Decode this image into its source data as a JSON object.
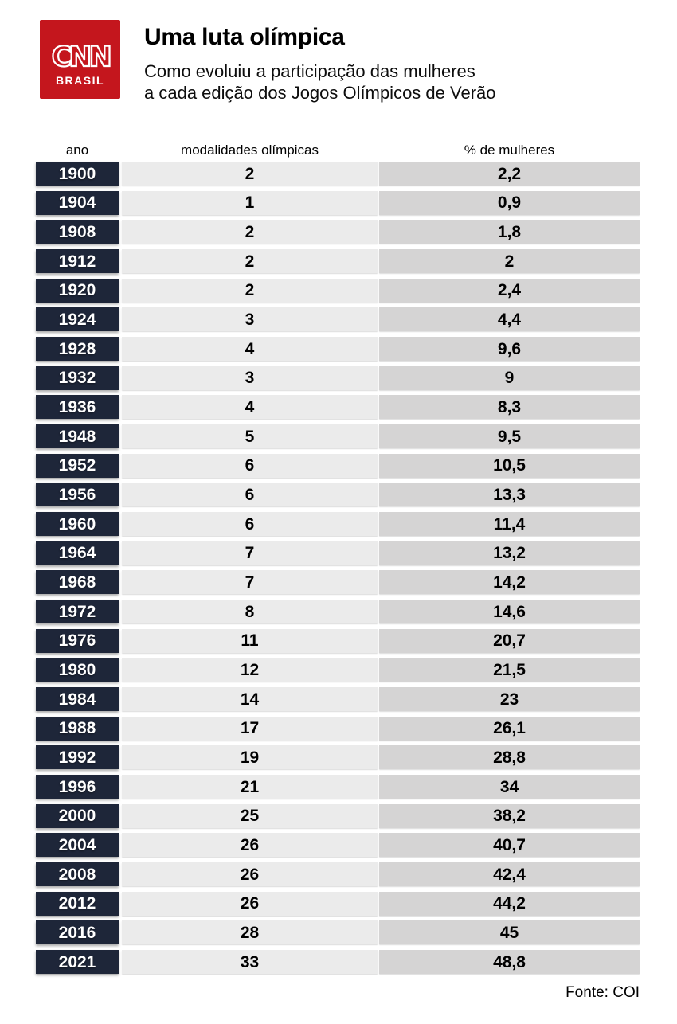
{
  "logo": {
    "brand": "CNN",
    "region": "BRASIL"
  },
  "header": {
    "title": "Uma luta olímpica",
    "subtitle_line1": "Como evoluiu a participação das mulheres",
    "subtitle_line2": "a cada edição dos Jogos Olímpicos de Verão"
  },
  "colors": {
    "cnn_red": "#c4161d",
    "navy": "#1e2639",
    "col_light": "#ebebeb",
    "col_mid": "#d5d4d4"
  },
  "table": {
    "columns": [
      "ano",
      "modalidades olímpicas",
      "% de mulheres"
    ],
    "rows": [
      {
        "year": "1900",
        "modalities": "2",
        "women_pct": "2,2"
      },
      {
        "year": "1904",
        "modalities": "1",
        "women_pct": "0,9"
      },
      {
        "year": "1908",
        "modalities": "2",
        "women_pct": "1,8"
      },
      {
        "year": "1912",
        "modalities": "2",
        "women_pct": "2"
      },
      {
        "year": "1920",
        "modalities": "2",
        "women_pct": "2,4"
      },
      {
        "year": "1924",
        "modalities": "3",
        "women_pct": "4,4"
      },
      {
        "year": "1928",
        "modalities": "4",
        "women_pct": "9,6"
      },
      {
        "year": "1932",
        "modalities": "3",
        "women_pct": "9"
      },
      {
        "year": "1936",
        "modalities": "4",
        "women_pct": "8,3"
      },
      {
        "year": "1948",
        "modalities": "5",
        "women_pct": "9,5"
      },
      {
        "year": "1952",
        "modalities": "6",
        "women_pct": "10,5"
      },
      {
        "year": "1956",
        "modalities": "6",
        "women_pct": "13,3"
      },
      {
        "year": "1960",
        "modalities": "6",
        "women_pct": "11,4"
      },
      {
        "year": "1964",
        "modalities": "7",
        "women_pct": "13,2"
      },
      {
        "year": "1968",
        "modalities": "7",
        "women_pct": "14,2"
      },
      {
        "year": "1972",
        "modalities": "8",
        "women_pct": "14,6"
      },
      {
        "year": "1976",
        "modalities": "11",
        "women_pct": "20,7"
      },
      {
        "year": "1980",
        "modalities": "12",
        "women_pct": "21,5"
      },
      {
        "year": "1984",
        "modalities": "14",
        "women_pct": "23"
      },
      {
        "year": "1988",
        "modalities": "17",
        "women_pct": "26,1"
      },
      {
        "year": "1992",
        "modalities": "19",
        "women_pct": "28,8"
      },
      {
        "year": "1996",
        "modalities": "21",
        "women_pct": "34"
      },
      {
        "year": "2000",
        "modalities": "25",
        "women_pct": "38,2"
      },
      {
        "year": "2004",
        "modalities": "26",
        "women_pct": "40,7"
      },
      {
        "year": "2008",
        "modalities": "26",
        "women_pct": "42,4"
      },
      {
        "year": "2012",
        "modalities": "26",
        "women_pct": "44,2"
      },
      {
        "year": "2016",
        "modalities": "28",
        "women_pct": "45"
      },
      {
        "year": "2021",
        "modalities": "33",
        "women_pct": "48,8"
      }
    ]
  },
  "footer": {
    "source": "Fonte: COI"
  },
  "chart_data": {
    "type": "table",
    "title": "Uma luta olímpica",
    "subtitle": "Como evoluiu a participação das mulheres a cada edição dos Jogos Olímpicos de Verão",
    "columns": [
      "ano",
      "modalidades olímpicas",
      "% de mulheres"
    ],
    "x": [
      1900,
      1904,
      1908,
      1912,
      1920,
      1924,
      1928,
      1932,
      1936,
      1948,
      1952,
      1956,
      1960,
      1964,
      1968,
      1972,
      1976,
      1980,
      1984,
      1988,
      1992,
      1996,
      2000,
      2004,
      2008,
      2012,
      2016,
      2021
    ],
    "series": [
      {
        "name": "modalidades olímpicas",
        "values": [
          2,
          1,
          2,
          2,
          2,
          3,
          4,
          3,
          4,
          5,
          6,
          6,
          6,
          7,
          7,
          8,
          11,
          12,
          14,
          17,
          19,
          21,
          25,
          26,
          26,
          26,
          28,
          33
        ]
      },
      {
        "name": "% de mulheres",
        "values": [
          2.2,
          0.9,
          1.8,
          2,
          2.4,
          4.4,
          9.6,
          9,
          8.3,
          9.5,
          10.5,
          13.3,
          11.4,
          13.2,
          14.2,
          14.6,
          20.7,
          21.5,
          23,
          26.1,
          28.8,
          34,
          38.2,
          40.7,
          42.4,
          44.2,
          45,
          48.8
        ]
      }
    ],
    "source": "Fonte: COI"
  }
}
